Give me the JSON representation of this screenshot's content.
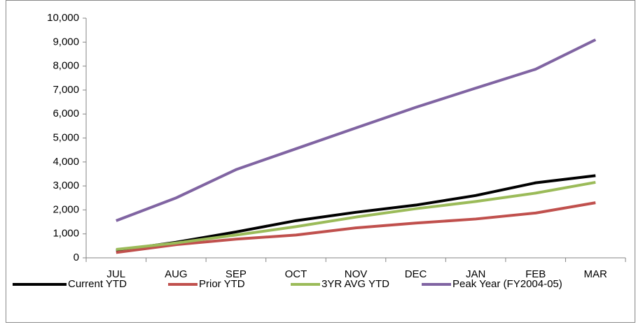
{
  "chart_data": {
    "type": "line",
    "categories": [
      "JUL",
      "AUG",
      "SEP",
      "OCT",
      "NOV",
      "DEC",
      "JAN",
      "FEB",
      "MAR"
    ],
    "series": [
      {
        "name": "Current YTD",
        "color": "#000000",
        "values": [
          300,
          650,
          1080,
          1550,
          1900,
          2200,
          2600,
          3130,
          3430
        ]
      },
      {
        "name": "Prior YTD",
        "color": "#c0504d",
        "values": [
          220,
          550,
          780,
          950,
          1250,
          1450,
          1620,
          1870,
          2300
        ]
      },
      {
        "name": "3YR AVG YTD",
        "color": "#9bbb59",
        "values": [
          350,
          620,
          950,
          1300,
          1700,
          2050,
          2350,
          2700,
          3150
        ]
      },
      {
        "name": "Peak Year (FY2004-05)",
        "color": "#8064a2",
        "values": [
          1550,
          2500,
          3680,
          4550,
          5420,
          6280,
          7080,
          7870,
          9100
        ]
      }
    ],
    "ylim": [
      0,
      10000
    ],
    "yticks": [
      0,
      {
        "value": 1000,
        "label": "1,000"
      },
      {
        "value": 2000,
        "label": "2,000"
      },
      {
        "value": 3000,
        "label": "3,000"
      },
      {
        "value": 4000,
        "label": "4,000"
      },
      {
        "value": 5000,
        "label": "5,000"
      },
      {
        "value": 6000,
        "label": "6,000"
      },
      {
        "value": 7000,
        "label": "7,000"
      },
      {
        "value": 8000,
        "label": "8,000"
      },
      {
        "value": 9000,
        "label": "9,000"
      },
      {
        "value": 10000,
        "label": "10,000"
      }
    ],
    "grid": false,
    "legend": "bottom"
  }
}
